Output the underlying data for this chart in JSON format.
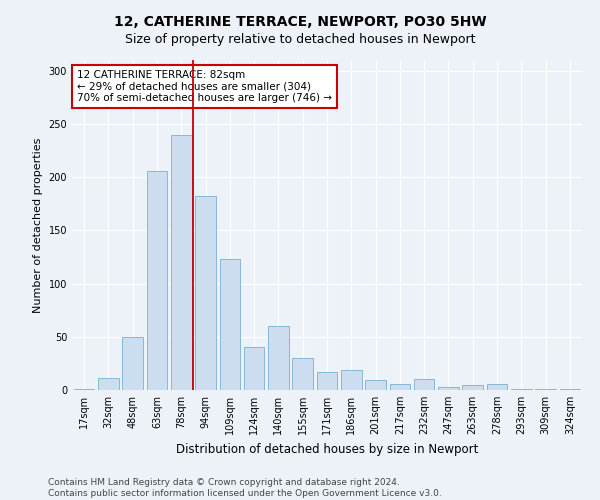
{
  "title": "12, CATHERINE TERRACE, NEWPORT, PO30 5HW",
  "subtitle": "Size of property relative to detached houses in Newport",
  "xlabel": "Distribution of detached houses by size in Newport",
  "ylabel": "Number of detached properties",
  "categories": [
    "17sqm",
    "32sqm",
    "48sqm",
    "63sqm",
    "78sqm",
    "94sqm",
    "109sqm",
    "124sqm",
    "140sqm",
    "155sqm",
    "171sqm",
    "186sqm",
    "201sqm",
    "217sqm",
    "232sqm",
    "247sqm",
    "263sqm",
    "278sqm",
    "293sqm",
    "309sqm",
    "324sqm"
  ],
  "values": [
    1,
    11,
    50,
    206,
    240,
    182,
    123,
    40,
    60,
    30,
    17,
    19,
    9,
    6,
    10,
    3,
    5,
    6,
    1,
    1,
    1
  ],
  "bar_color": "#ccddf0",
  "bar_edge_color": "#7aafd4",
  "vline_color": "#cc0000",
  "annotation_text": "12 CATHERINE TERRACE: 82sqm\n← 29% of detached houses are smaller (304)\n70% of semi-detached houses are larger (746) →",
  "annotation_box_facecolor": "#ffffff",
  "annotation_box_edgecolor": "#cc0000",
  "ylim": [
    0,
    310
  ],
  "yticks": [
    0,
    50,
    100,
    150,
    200,
    250,
    300
  ],
  "footer_line1": "Contains HM Land Registry data © Crown copyright and database right 2024.",
  "footer_line2": "Contains public sector information licensed under the Open Government Licence v3.0.",
  "bg_color": "#edf2f9",
  "plot_bg_color": "#edf2f9",
  "title_fontsize": 10,
  "subtitle_fontsize": 9,
  "xlabel_fontsize": 8.5,
  "ylabel_fontsize": 8,
  "tick_fontsize": 7,
  "annotation_fontsize": 7.5,
  "footer_fontsize": 6.5
}
